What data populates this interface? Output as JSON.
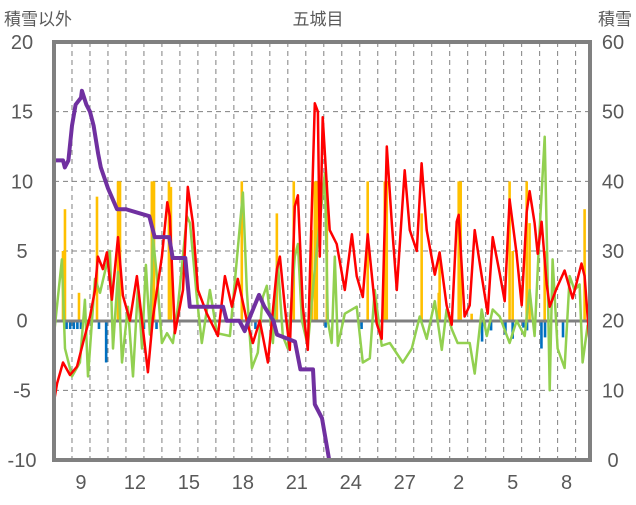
{
  "chart_data": {
    "type": "line",
    "title": "五城目",
    "ylabel_left": "積雪以外",
    "ylabel_right": "積雪",
    "ylim_left": [
      -10,
      20
    ],
    "ylim_right": [
      0,
      60
    ],
    "yticks_left": [
      "20",
      "15",
      "10",
      "5",
      "0",
      "-5",
      "-10"
    ],
    "yticks_left_values": [
      20,
      15,
      10,
      5,
      0,
      -5,
      -10
    ],
    "yticks_right": [
      "60",
      "50",
      "40",
      "30",
      "20",
      "10",
      "0"
    ],
    "yticks_right_values": [
      60,
      50,
      40,
      30,
      20,
      10,
      0
    ],
    "x_unit": "days since start of plotted period",
    "xlim": [
      0,
      29.8
    ],
    "xticks": [
      {
        "label": "9",
        "x": 1.5
      },
      {
        "label": "12",
        "x": 4.5
      },
      {
        "label": "15",
        "x": 7.5
      },
      {
        "label": "18",
        "x": 10.5
      },
      {
        "label": "21",
        "x": 13.5
      },
      {
        "label": "24",
        "x": 16.5
      },
      {
        "label": "27",
        "x": 19.5
      },
      {
        "label": "2",
        "x": 22.5
      },
      {
        "label": "5",
        "x": 25.5
      },
      {
        "label": "8",
        "x": 28.5
      }
    ],
    "grid": true,
    "legend": "none",
    "colors": {
      "red": "#ff0000",
      "green": "#92d050",
      "purple": "#7030a0",
      "orange": "#ffc000",
      "blue": "#0070c0",
      "axis": "#808080"
    },
    "series": [
      {
        "key": "orange_bars",
        "type": "bar",
        "axis": "left",
        "color": "#ffc000",
        "points": [
          [
            0.5,
            5
          ],
          [
            0.61,
            8
          ],
          [
            1.39,
            2
          ],
          [
            2.39,
            8.9
          ],
          [
            3.56,
            10
          ],
          [
            3.67,
            10
          ],
          [
            5.44,
            10
          ],
          [
            5.56,
            10
          ],
          [
            6.39,
            10
          ],
          [
            6.5,
            9.6
          ],
          [
            10.44,
            10
          ],
          [
            12.39,
            7.7
          ],
          [
            13.33,
            10
          ],
          [
            14.33,
            6.5
          ],
          [
            14.5,
            10
          ],
          [
            14.61,
            10
          ],
          [
            15.17,
            10
          ],
          [
            17.44,
            10
          ],
          [
            18.39,
            10
          ],
          [
            18.5,
            10
          ],
          [
            20.44,
            7.7
          ],
          [
            21.39,
            2
          ],
          [
            21.44,
            4.9
          ],
          [
            22.5,
            10
          ],
          [
            22.61,
            10
          ],
          [
            23.22,
            0.5
          ],
          [
            25.33,
            10
          ],
          [
            25.5,
            5
          ],
          [
            26.28,
            10
          ],
          [
            26.44,
            7
          ],
          [
            27.28,
            5
          ],
          [
            29.5,
            8
          ]
        ]
      },
      {
        "key": "blue_bars",
        "type": "bar",
        "axis": "left",
        "color": "#0070c0",
        "points": [
          [
            0.7,
            -0.6
          ],
          [
            0.9,
            -0.6
          ],
          [
            1.1,
            -0.6
          ],
          [
            1.3,
            -0.6
          ],
          [
            1.5,
            -0.6
          ],
          [
            2.5,
            -0.6
          ],
          [
            2.9,
            -3
          ],
          [
            5.0,
            -0.6
          ],
          [
            5.7,
            -0.6
          ],
          [
            11.2,
            -0.6
          ],
          [
            15.1,
            -0.5
          ],
          [
            17.1,
            -0.6
          ],
          [
            23.8,
            -1.5
          ],
          [
            24.3,
            -0.7
          ],
          [
            25.1,
            -1
          ],
          [
            25.5,
            -1.3
          ],
          [
            26.1,
            -0.5
          ],
          [
            26.3,
            -0.7
          ],
          [
            27.1,
            -2
          ],
          [
            27.3,
            -1.2
          ],
          [
            28.3,
            -1.2
          ]
        ]
      },
      {
        "key": "green_line",
        "type": "line",
        "axis": "left",
        "color": "#92d050",
        "points": [
          [
            0,
            -1
          ],
          [
            0.44,
            4.4
          ],
          [
            0.61,
            -2
          ],
          [
            1.0,
            -4
          ],
          [
            1.44,
            -3
          ],
          [
            1.72,
            1.5
          ],
          [
            1.89,
            -4
          ],
          [
            2.28,
            3
          ],
          [
            2.56,
            2
          ],
          [
            2.83,
            3.5
          ],
          [
            3.11,
            5
          ],
          [
            3.28,
            -2
          ],
          [
            3.56,
            3.5
          ],
          [
            3.78,
            -3
          ],
          [
            4.11,
            1
          ],
          [
            4.39,
            -4
          ],
          [
            4.67,
            2.5
          ],
          [
            4.89,
            -2
          ],
          [
            5.11,
            4
          ],
          [
            5.33,
            -1
          ],
          [
            5.5,
            6
          ],
          [
            5.72,
            3.2
          ],
          [
            6.0,
            -1.6
          ],
          [
            6.28,
            -0.9
          ],
          [
            6.61,
            -1.6
          ],
          [
            6.89,
            1
          ],
          [
            7.39,
            7.5
          ],
          [
            7.56,
            7
          ],
          [
            7.94,
            1.7
          ],
          [
            8.22,
            -1.6
          ],
          [
            8.67,
            2.2
          ],
          [
            9.06,
            -0.9
          ],
          [
            9.78,
            -1.1
          ],
          [
            10.5,
            9.2
          ],
          [
            10.72,
            2.2
          ],
          [
            11.0,
            -3.4
          ],
          [
            11.33,
            -2.3
          ],
          [
            11.61,
            1.7
          ],
          [
            11.83,
            2.5
          ],
          [
            12.17,
            -1.6
          ],
          [
            12.44,
            4.2
          ],
          [
            12.72,
            -1.1
          ],
          [
            13.0,
            -2
          ],
          [
            13.39,
            4.6
          ],
          [
            13.56,
            5.5
          ],
          [
            13.78,
            0
          ],
          [
            14.11,
            -1.8
          ],
          [
            14.5,
            3.7
          ],
          [
            15.06,
            10.6
          ],
          [
            15.22,
            0
          ],
          [
            15.44,
            -1.6
          ],
          [
            15.61,
            4.6
          ],
          [
            15.78,
            -1.8
          ],
          [
            16.17,
            0.5
          ],
          [
            16.83,
            1
          ],
          [
            17.17,
            -3
          ],
          [
            17.56,
            -2.7
          ],
          [
            17.83,
            2.2
          ],
          [
            18.22,
            -1.8
          ],
          [
            18.67,
            -1.6
          ],
          [
            19.39,
            -3
          ],
          [
            19.89,
            -2
          ],
          [
            20.33,
            0.3
          ],
          [
            20.72,
            -1.3
          ],
          [
            21.17,
            1.4
          ],
          [
            21.56,
            -2.1
          ],
          [
            21.83,
            0.8
          ],
          [
            22.11,
            -0.6
          ],
          [
            22.44,
            -1.6
          ],
          [
            23.11,
            -1.6
          ],
          [
            23.39,
            -3.8
          ],
          [
            23.78,
            0.8
          ],
          [
            24.06,
            -1.1
          ],
          [
            24.39,
            0.8
          ],
          [
            24.78,
            0.3
          ],
          [
            25.33,
            -1.6
          ],
          [
            25.72,
            0
          ],
          [
            26.17,
            -1.1
          ],
          [
            26.44,
            2.2
          ],
          [
            26.72,
            -1.1
          ],
          [
            27.0,
            6.5
          ],
          [
            27.28,
            13.2
          ],
          [
            27.44,
            3.2
          ],
          [
            27.56,
            -5
          ],
          [
            27.72,
            4.4
          ],
          [
            28.0,
            -2
          ],
          [
            28.39,
            -3.4
          ],
          [
            28.67,
            3.2
          ],
          [
            28.94,
            2.2
          ],
          [
            29.22,
            2.6
          ],
          [
            29.39,
            -3
          ],
          [
            29.67,
            -0.3
          ]
        ]
      },
      {
        "key": "red_line",
        "type": "line",
        "axis": "left",
        "color": "#ff0000",
        "points": [
          [
            0,
            -5.8
          ],
          [
            0.17,
            -4.5
          ],
          [
            0.5,
            -3
          ],
          [
            0.89,
            -3.9
          ],
          [
            1.28,
            -3.3
          ],
          [
            1.61,
            -1.6
          ],
          [
            2.0,
            0.3
          ],
          [
            2.28,
            2.2
          ],
          [
            2.44,
            4.6
          ],
          [
            2.72,
            3.7
          ],
          [
            2.94,
            4.9
          ],
          [
            3.22,
            1.5
          ],
          [
            3.56,
            6
          ],
          [
            3.83,
            1.8
          ],
          [
            4.22,
            0
          ],
          [
            4.61,
            3.2
          ],
          [
            5.22,
            -3.7
          ],
          [
            5.5,
            0.2
          ],
          [
            6.0,
            4.6
          ],
          [
            6.3,
            8.5
          ],
          [
            6.44,
            7.5
          ],
          [
            6.72,
            -0.9
          ],
          [
            7.17,
            2.2
          ],
          [
            7.44,
            9.6
          ],
          [
            7.72,
            7
          ],
          [
            8.0,
            2.2
          ],
          [
            8.5,
            0.5
          ],
          [
            9.11,
            -1.1
          ],
          [
            9.5,
            3.2
          ],
          [
            9.89,
            1
          ],
          [
            10.22,
            3
          ],
          [
            10.72,
            0
          ],
          [
            11.06,
            -1.6
          ],
          [
            11.44,
            0
          ],
          [
            11.89,
            -3
          ],
          [
            12.39,
            3.7
          ],
          [
            12.56,
            4.6
          ],
          [
            12.83,
            1
          ],
          [
            13.11,
            -2.1
          ],
          [
            13.39,
            8.2
          ],
          [
            13.56,
            9
          ],
          [
            13.83,
            1
          ],
          [
            14.11,
            -2.1
          ],
          [
            14.5,
            15.6
          ],
          [
            14.67,
            15
          ],
          [
            14.78,
            4.6
          ],
          [
            14.94,
            14.6
          ],
          [
            15.17,
            9.6
          ],
          [
            15.33,
            6.5
          ],
          [
            15.72,
            5.5
          ],
          [
            16.17,
            2.2
          ],
          [
            16.56,
            6.2
          ],
          [
            16.83,
            3.2
          ],
          [
            17.17,
            1.7
          ],
          [
            17.44,
            6.2
          ],
          [
            17.94,
            -0.2
          ],
          [
            18.22,
            -1.3
          ],
          [
            18.5,
            12.5
          ],
          [
            18.78,
            7
          ],
          [
            19.06,
            2.2
          ],
          [
            19.5,
            10.8
          ],
          [
            19.78,
            6.5
          ],
          [
            20.17,
            5
          ],
          [
            20.44,
            11.3
          ],
          [
            20.72,
            6.5
          ],
          [
            21.17,
            3.3
          ],
          [
            21.44,
            4.9
          ],
          [
            21.83,
            1.1
          ],
          [
            22.11,
            -0.3
          ],
          [
            22.39,
            7.1
          ],
          [
            22.5,
            7.6
          ],
          [
            22.83,
            0.3
          ],
          [
            23.11,
            1.1
          ],
          [
            23.39,
            6.5
          ],
          [
            23.78,
            3.2
          ],
          [
            24.11,
            0.5
          ],
          [
            24.39,
            6
          ],
          [
            24.78,
            3.4
          ],
          [
            25.06,
            1.4
          ],
          [
            25.33,
            8.7
          ],
          [
            25.72,
            4.8
          ],
          [
            26.0,
            1.1
          ],
          [
            26.28,
            7.8
          ],
          [
            26.44,
            9.3
          ],
          [
            26.72,
            7
          ],
          [
            26.89,
            4.8
          ],
          [
            27.11,
            7.1
          ],
          [
            27.39,
            2.6
          ],
          [
            27.56,
            1
          ],
          [
            27.94,
            2.3
          ],
          [
            28.39,
            3.6
          ],
          [
            28.83,
            1.6
          ],
          [
            29.33,
            4.1
          ],
          [
            29.5,
            3.2
          ],
          [
            29.78,
            -1.6
          ]
        ]
      },
      {
        "key": "purple_line",
        "type": "line",
        "axis": "right",
        "color": "#7030a0",
        "points": [
          [
            0,
            43
          ],
          [
            0.5,
            43
          ],
          [
            0.6,
            42
          ],
          [
            0.8,
            43
          ],
          [
            1.0,
            48
          ],
          [
            1.2,
            51
          ],
          [
            1.5,
            52
          ],
          [
            1.55,
            53
          ],
          [
            1.8,
            51
          ],
          [
            2.0,
            50
          ],
          [
            2.2,
            48
          ],
          [
            2.45,
            44
          ],
          [
            2.6,
            42
          ],
          [
            3.0,
            39
          ],
          [
            3.5,
            36
          ],
          [
            4.0,
            36
          ],
          [
            5.3,
            35
          ],
          [
            5.6,
            32
          ],
          [
            6.4,
            32
          ],
          [
            6.6,
            29
          ],
          [
            7.3,
            29
          ],
          [
            7.55,
            22
          ],
          [
            9.4,
            22
          ],
          [
            9.6,
            20
          ],
          [
            10.3,
            20
          ],
          [
            10.6,
            18.5
          ],
          [
            10.9,
            20.6
          ],
          [
            11.4,
            23.7
          ],
          [
            11.7,
            22
          ],
          [
            12.2,
            20
          ],
          [
            12.4,
            18
          ],
          [
            13.4,
            17
          ],
          [
            13.7,
            13
          ],
          [
            14.4,
            13
          ],
          [
            14.5,
            8
          ],
          [
            14.9,
            6
          ],
          [
            15.3,
            0
          ],
          [
            29.8,
            0
          ]
        ]
      }
    ]
  }
}
